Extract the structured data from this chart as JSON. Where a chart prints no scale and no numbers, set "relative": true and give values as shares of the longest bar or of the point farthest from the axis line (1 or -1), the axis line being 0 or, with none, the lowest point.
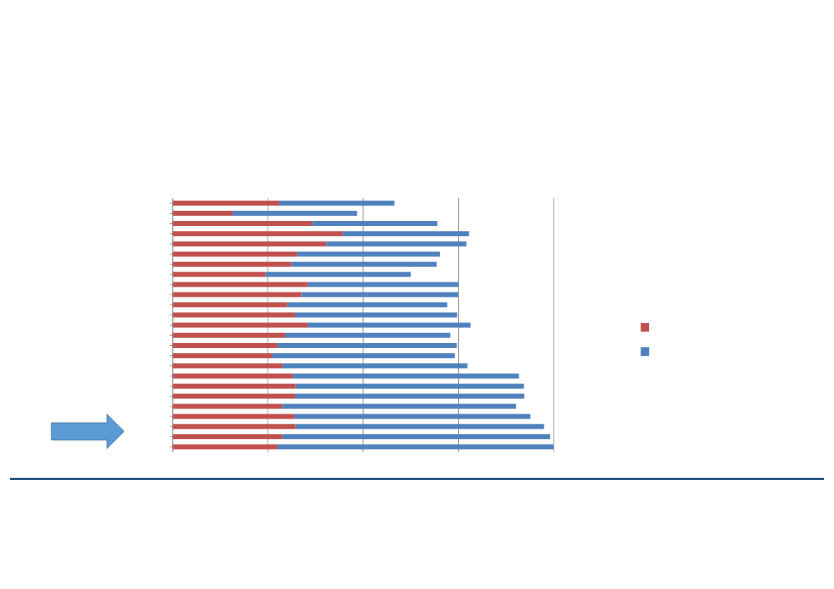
{
  "chart_data": {
    "type": "bar",
    "orientation": "horizontal",
    "stacked": true,
    "relative": true,
    "grid": "x",
    "categories": [
      null,
      null,
      null,
      null,
      null,
      null,
      null,
      null,
      null,
      null,
      null,
      null,
      null,
      null,
      null,
      null,
      null,
      null,
      null,
      null,
      null,
      null,
      null,
      null,
      null
    ],
    "series": [
      {
        "color": "#c0504d",
        "values": [
          0.279,
          0.157,
          0.366,
          0.447,
          0.403,
          0.327,
          0.312,
          0.244,
          0.355,
          0.338,
          0.301,
          0.322,
          0.355,
          0.296,
          0.275,
          0.262,
          0.288,
          0.316,
          0.323,
          0.322,
          0.287,
          0.32,
          0.323,
          0.287,
          0.275
        ]
      },
      {
        "color": "#4f81bd",
        "values": [
          0.303,
          0.327,
          0.329,
          0.331,
          0.368,
          0.375,
          0.381,
          0.381,
          0.396,
          0.412,
          0.42,
          0.425,
          0.427,
          0.433,
          0.471,
          0.479,
          0.486,
          0.593,
          0.599,
          0.601,
          0.614,
          0.619,
          0.652,
          0.704,
          0.725
        ]
      }
    ]
  }
}
